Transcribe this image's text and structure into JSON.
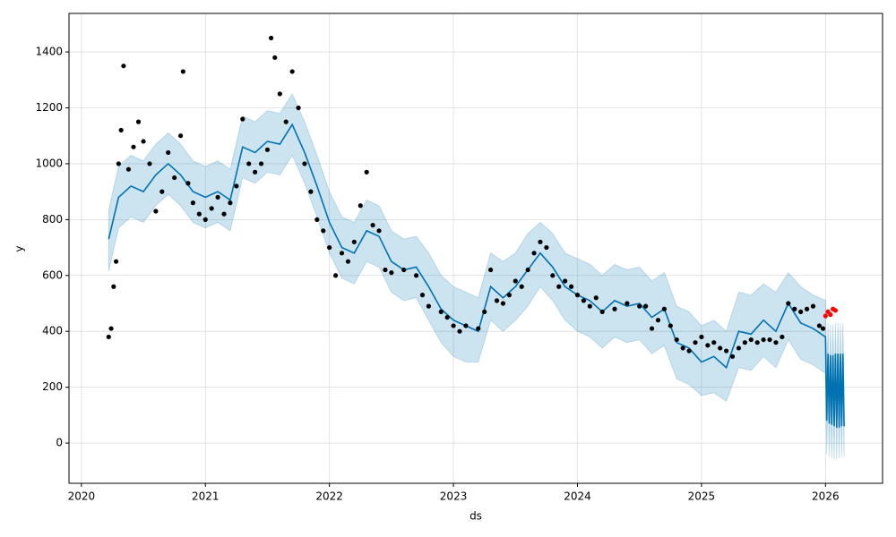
{
  "chart_data": {
    "type": "forecast",
    "x_label": "ds",
    "y_label": "y",
    "xlim": [
      2019.9,
      2026.46
    ],
    "xticks": [
      2020,
      2021,
      2022,
      2023,
      2024,
      2025,
      2026
    ],
    "ylim": [
      -144,
      1538
    ],
    "yticks": [
      0,
      200,
      400,
      600,
      800,
      1000,
      1200,
      1400
    ],
    "grid": true,
    "observed": {
      "color": "#000000",
      "points": [
        [
          2020.22,
          380
        ],
        [
          2020.24,
          410
        ],
        [
          2020.26,
          560
        ],
        [
          2020.28,
          650
        ],
        [
          2020.3,
          1000
        ],
        [
          2020.32,
          1120
        ],
        [
          2020.34,
          1350
        ],
        [
          2020.38,
          980
        ],
        [
          2020.42,
          1060
        ],
        [
          2020.46,
          1150
        ],
        [
          2020.5,
          1080
        ],
        [
          2020.55,
          1000
        ],
        [
          2020.6,
          830
        ],
        [
          2020.65,
          900
        ],
        [
          2020.7,
          1040
        ],
        [
          2020.75,
          950
        ],
        [
          2020.8,
          1100
        ],
        [
          2020.82,
          1330
        ],
        [
          2020.86,
          930
        ],
        [
          2020.9,
          860
        ],
        [
          2020.95,
          820
        ],
        [
          2021.0,
          800
        ],
        [
          2021.05,
          840
        ],
        [
          2021.1,
          880
        ],
        [
          2021.15,
          820
        ],
        [
          2021.2,
          860
        ],
        [
          2021.25,
          920
        ],
        [
          2021.3,
          1160
        ],
        [
          2021.35,
          1000
        ],
        [
          2021.4,
          970
        ],
        [
          2021.45,
          1000
        ],
        [
          2021.5,
          1050
        ],
        [
          2021.53,
          1450
        ],
        [
          2021.56,
          1380
        ],
        [
          2021.6,
          1250
        ],
        [
          2021.65,
          1150
        ],
        [
          2021.7,
          1330
        ],
        [
          2021.75,
          1200
        ],
        [
          2021.8,
          1000
        ],
        [
          2021.85,
          900
        ],
        [
          2021.9,
          800
        ],
        [
          2021.95,
          760
        ],
        [
          2022.0,
          700
        ],
        [
          2022.05,
          600
        ],
        [
          2022.1,
          680
        ],
        [
          2022.15,
          650
        ],
        [
          2022.2,
          720
        ],
        [
          2022.25,
          850
        ],
        [
          2022.3,
          970
        ],
        [
          2022.35,
          780
        ],
        [
          2022.4,
          760
        ],
        [
          2022.45,
          620
        ],
        [
          2022.5,
          610
        ],
        [
          2022.6,
          620
        ],
        [
          2022.7,
          600
        ],
        [
          2022.75,
          530
        ],
        [
          2022.8,
          490
        ],
        [
          2022.9,
          470
        ],
        [
          2022.95,
          450
        ],
        [
          2023.0,
          420
        ],
        [
          2023.05,
          400
        ],
        [
          2023.1,
          420
        ],
        [
          2023.2,
          410
        ],
        [
          2023.25,
          470
        ],
        [
          2023.3,
          620
        ],
        [
          2023.35,
          510
        ],
        [
          2023.4,
          500
        ],
        [
          2023.45,
          530
        ],
        [
          2023.5,
          580
        ],
        [
          2023.55,
          560
        ],
        [
          2023.6,
          620
        ],
        [
          2023.65,
          680
        ],
        [
          2023.7,
          720
        ],
        [
          2023.75,
          700
        ],
        [
          2023.8,
          600
        ],
        [
          2023.85,
          560
        ],
        [
          2023.9,
          580
        ],
        [
          2023.95,
          560
        ],
        [
          2024.0,
          530
        ],
        [
          2024.05,
          510
        ],
        [
          2024.1,
          490
        ],
        [
          2024.15,
          520
        ],
        [
          2024.2,
          470
        ],
        [
          2024.3,
          480
        ],
        [
          2024.4,
          500
        ],
        [
          2024.5,
          490
        ],
        [
          2024.55,
          490
        ],
        [
          2024.6,
          410
        ],
        [
          2024.65,
          440
        ],
        [
          2024.7,
          480
        ],
        [
          2024.75,
          420
        ],
        [
          2024.8,
          370
        ],
        [
          2024.85,
          340
        ],
        [
          2024.9,
          330
        ],
        [
          2024.95,
          360
        ],
        [
          2025.0,
          380
        ],
        [
          2025.05,
          350
        ],
        [
          2025.1,
          360
        ],
        [
          2025.15,
          340
        ],
        [
          2025.2,
          330
        ],
        [
          2025.25,
          310
        ],
        [
          2025.3,
          340
        ],
        [
          2025.35,
          360
        ],
        [
          2025.4,
          370
        ],
        [
          2025.45,
          360
        ],
        [
          2025.5,
          370
        ],
        [
          2025.55,
          370
        ],
        [
          2025.6,
          360
        ],
        [
          2025.65,
          380
        ],
        [
          2025.7,
          500
        ],
        [
          2025.75,
          480
        ],
        [
          2025.8,
          470
        ],
        [
          2025.85,
          480
        ],
        [
          2025.9,
          490
        ],
        [
          2025.95,
          420
        ],
        [
          2025.98,
          410
        ]
      ]
    },
    "test": {
      "color": "#ff0000",
      "points": [
        [
          2026.0,
          455
        ],
        [
          2026.02,
          470
        ],
        [
          2026.04,
          460
        ],
        [
          2026.06,
          480
        ],
        [
          2026.08,
          475
        ]
      ]
    },
    "forecast": {
      "color": "#0072B2",
      "band_color": "#0072B2",
      "rows": [
        [
          2020.22,
          730,
          615,
          835
        ],
        [
          2020.3,
          880,
          770,
          990
        ],
        [
          2020.4,
          920,
          810,
          1030
        ],
        [
          2020.5,
          900,
          790,
          1010
        ],
        [
          2020.6,
          960,
          850,
          1070
        ],
        [
          2020.7,
          1000,
          890,
          1110
        ],
        [
          2020.8,
          960,
          850,
          1070
        ],
        [
          2020.9,
          900,
          790,
          1010
        ],
        [
          2021.0,
          880,
          770,
          990
        ],
        [
          2021.1,
          900,
          790,
          1010
        ],
        [
          2021.2,
          870,
          760,
          980
        ],
        [
          2021.3,
          1060,
          950,
          1170
        ],
        [
          2021.4,
          1040,
          930,
          1150
        ],
        [
          2021.5,
          1080,
          970,
          1190
        ],
        [
          2021.6,
          1070,
          960,
          1180
        ],
        [
          2021.7,
          1140,
          1030,
          1250
        ],
        [
          2021.8,
          1040,
          930,
          1150
        ],
        [
          2021.9,
          920,
          810,
          1030
        ],
        [
          2022.0,
          790,
          680,
          900
        ],
        [
          2022.1,
          700,
          590,
          810
        ],
        [
          2022.2,
          680,
          570,
          790
        ],
        [
          2022.3,
          760,
          650,
          870
        ],
        [
          2022.4,
          740,
          630,
          850
        ],
        [
          2022.5,
          650,
          540,
          760
        ],
        [
          2022.6,
          620,
          510,
          730
        ],
        [
          2022.7,
          630,
          520,
          740
        ],
        [
          2022.8,
          560,
          440,
          680
        ],
        [
          2022.9,
          480,
          360,
          600
        ],
        [
          2023.0,
          440,
          310,
          560
        ],
        [
          2023.1,
          420,
          290,
          540
        ],
        [
          2023.2,
          400,
          290,
          520
        ],
        [
          2023.3,
          560,
          440,
          680
        ],
        [
          2023.4,
          520,
          400,
          650
        ],
        [
          2023.5,
          560,
          440,
          680
        ],
        [
          2023.6,
          620,
          490,
          750
        ],
        [
          2023.7,
          680,
          560,
          790
        ],
        [
          2023.8,
          630,
          510,
          750
        ],
        [
          2023.9,
          560,
          440,
          680
        ],
        [
          2024.0,
          530,
          400,
          660
        ],
        [
          2024.1,
          510,
          380,
          640
        ],
        [
          2024.2,
          470,
          340,
          600
        ],
        [
          2024.3,
          510,
          380,
          640
        ],
        [
          2024.4,
          490,
          360,
          620
        ],
        [
          2024.5,
          500,
          370,
          630
        ],
        [
          2024.6,
          450,
          320,
          580
        ],
        [
          2024.7,
          480,
          350,
          610
        ],
        [
          2024.8,
          360,
          230,
          490
        ],
        [
          2024.9,
          340,
          210,
          470
        ],
        [
          2025.0,
          290,
          170,
          420
        ],
        [
          2025.1,
          310,
          180,
          440
        ],
        [
          2025.2,
          270,
          150,
          400
        ],
        [
          2025.3,
          400,
          270,
          540
        ],
        [
          2025.4,
          390,
          260,
          530
        ],
        [
          2025.5,
          440,
          310,
          570
        ],
        [
          2025.6,
          400,
          270,
          540
        ],
        [
          2025.7,
          500,
          370,
          610
        ],
        [
          2025.8,
          430,
          300,
          560
        ],
        [
          2025.9,
          410,
          280,
          530
        ],
        [
          2026.0,
          380,
          250,
          510
        ],
        [
          2026.01,
          80,
          -40,
          220
        ],
        [
          2026.02,
          320,
          190,
          430
        ],
        [
          2026.03,
          70,
          -50,
          210
        ],
        [
          2026.04,
          315,
          185,
          425
        ],
        [
          2026.05,
          65,
          -55,
          205
        ],
        [
          2026.06,
          315,
          185,
          425
        ],
        [
          2026.07,
          60,
          -60,
          200
        ],
        [
          2026.08,
          320,
          190,
          430
        ],
        [
          2026.09,
          55,
          -60,
          195
        ],
        [
          2026.1,
          320,
          190,
          430
        ],
        [
          2026.11,
          55,
          -55,
          195
        ],
        [
          2026.12,
          320,
          190,
          430
        ],
        [
          2026.13,
          60,
          -50,
          200
        ],
        [
          2026.14,
          320,
          190,
          430
        ],
        [
          2026.15,
          60,
          -50,
          200
        ]
      ]
    }
  }
}
